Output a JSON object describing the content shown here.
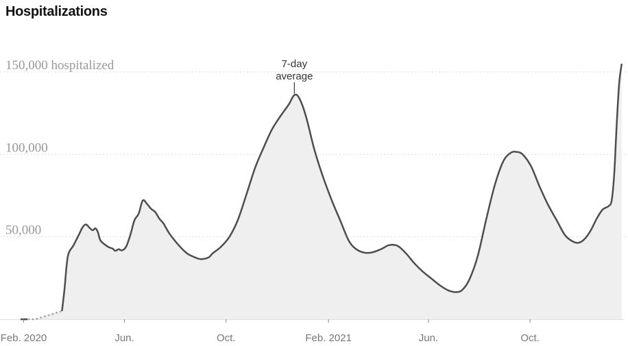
{
  "title": "Hospitalizations",
  "chart_data": {
    "type": "area",
    "title": "Hospitalizations",
    "series": [
      {
        "values_note": "",
        "points": [
          [
            "2020-02-01",
            0
          ],
          [
            "2020-02-15",
            0
          ],
          [
            "2020-03-18",
            5000
          ],
          [
            "2020-03-21",
            18000
          ],
          [
            "2020-03-25",
            38000
          ],
          [
            "2020-04-01",
            45000
          ],
          [
            "2020-04-08",
            52000
          ],
          [
            "2020-04-12",
            56000
          ],
          [
            "2020-04-16",
            57500
          ],
          [
            "2020-04-20",
            55500
          ],
          [
            "2020-04-24",
            54000
          ],
          [
            "2020-04-27",
            55200
          ],
          [
            "2020-04-30",
            53000
          ],
          [
            "2020-05-03",
            48000
          ],
          [
            "2020-05-08",
            45500
          ],
          [
            "2020-05-13",
            43800
          ],
          [
            "2020-05-18",
            42800
          ],
          [
            "2020-05-21",
            41500
          ],
          [
            "2020-05-25",
            42500
          ],
          [
            "2020-05-29",
            41800
          ],
          [
            "2020-06-03",
            44000
          ],
          [
            "2020-06-08",
            51000
          ],
          [
            "2020-06-13",
            60000
          ],
          [
            "2020-06-18",
            64000
          ],
          [
            "2020-06-23",
            72000
          ],
          [
            "2020-06-28",
            70000
          ],
          [
            "2020-07-03",
            67000
          ],
          [
            "2020-07-08",
            65000
          ],
          [
            "2020-07-13",
            61000
          ],
          [
            "2020-07-18",
            58000
          ],
          [
            "2020-07-25",
            52000
          ],
          [
            "2020-08-05",
            45000
          ],
          [
            "2020-08-15",
            40000
          ],
          [
            "2020-08-25",
            37500
          ],
          [
            "2020-09-01",
            36500
          ],
          [
            "2020-09-10",
            37500
          ],
          [
            "2020-09-15",
            40000
          ],
          [
            "2020-09-25",
            44000
          ],
          [
            "2020-10-05",
            50000
          ],
          [
            "2020-10-15",
            60000
          ],
          [
            "2020-10-25",
            75000
          ],
          [
            "2020-11-05",
            92000
          ],
          [
            "2020-11-15",
            104000
          ],
          [
            "2020-11-25",
            115000
          ],
          [
            "2020-12-05",
            123000
          ],
          [
            "2020-12-15",
            130000
          ],
          [
            "2020-12-22",
            136000
          ],
          [
            "2020-12-28",
            134000
          ],
          [
            "2021-01-05",
            123000
          ],
          [
            "2021-01-15",
            103000
          ],
          [
            "2021-01-25",
            87000
          ],
          [
            "2021-02-05",
            72000
          ],
          [
            "2021-02-15",
            60000
          ],
          [
            "2021-02-25",
            48000
          ],
          [
            "2021-03-05",
            43000
          ],
          [
            "2021-03-15",
            40500
          ],
          [
            "2021-03-25",
            40500
          ],
          [
            "2021-04-05",
            42500
          ],
          [
            "2021-04-15",
            45000
          ],
          [
            "2021-04-25",
            44500
          ],
          [
            "2021-05-05",
            40000
          ],
          [
            "2021-05-15",
            34000
          ],
          [
            "2021-05-25",
            29000
          ],
          [
            "2021-06-05",
            24500
          ],
          [
            "2021-06-15",
            20500
          ],
          [
            "2021-06-25",
            17500
          ],
          [
            "2021-07-05",
            16500
          ],
          [
            "2021-07-12",
            18000
          ],
          [
            "2021-07-20",
            24000
          ],
          [
            "2021-07-30",
            38000
          ],
          [
            "2021-08-10",
            62000
          ],
          [
            "2021-08-20",
            82000
          ],
          [
            "2021-08-30",
            96000
          ],
          [
            "2021-09-08",
            101000
          ],
          [
            "2021-09-15",
            101500
          ],
          [
            "2021-09-22",
            100000
          ],
          [
            "2021-10-02",
            93000
          ],
          [
            "2021-10-12",
            81000
          ],
          [
            "2021-10-22",
            70000
          ],
          [
            "2021-11-02",
            60000
          ],
          [
            "2021-11-12",
            51000
          ],
          [
            "2021-11-22",
            47000
          ],
          [
            "2021-11-29",
            46500
          ],
          [
            "2021-12-06",
            49000
          ],
          [
            "2021-12-13",
            54000
          ],
          [
            "2021-12-20",
            61000
          ],
          [
            "2021-12-27",
            66500
          ],
          [
            "2022-01-03",
            68500
          ],
          [
            "2022-01-07",
            72000
          ],
          [
            "2022-01-10",
            88000
          ],
          [
            "2022-01-13",
            118000
          ],
          [
            "2022-01-16",
            143000
          ],
          [
            "2022-01-19",
            155000
          ]
        ]
      }
    ],
    "dashed_until": "2020-03-18",
    "ylim": [
      0,
      150000
    ],
    "y_ticks": [
      {
        "value": 150000,
        "label": "150,000 hospitalized"
      },
      {
        "value": 100000,
        "label": "100,000"
      },
      {
        "value": 50000,
        "label": "50,000"
      }
    ],
    "x_ticks": [
      {
        "date": "2020-02-01",
        "label": "Feb. 2020"
      },
      {
        "date": "2020-06-01",
        "label": "Jun."
      },
      {
        "date": "2020-10-01",
        "label": "Oct."
      },
      {
        "date": "2021-02-01",
        "label": "Feb. 2021"
      },
      {
        "date": "2021-06-01",
        "label": "Jun."
      },
      {
        "date": "2021-10-01",
        "label": "Oct."
      }
    ],
    "xlim": [
      "2020-01-25",
      "2022-01-20"
    ],
    "annotation": {
      "date": "2020-12-22",
      "lines": [
        "7-day",
        "average"
      ]
    },
    "grid": true,
    "colors": {
      "line": "#4d4d4d",
      "fill": "#efefef",
      "grid": "#dddddd"
    }
  }
}
